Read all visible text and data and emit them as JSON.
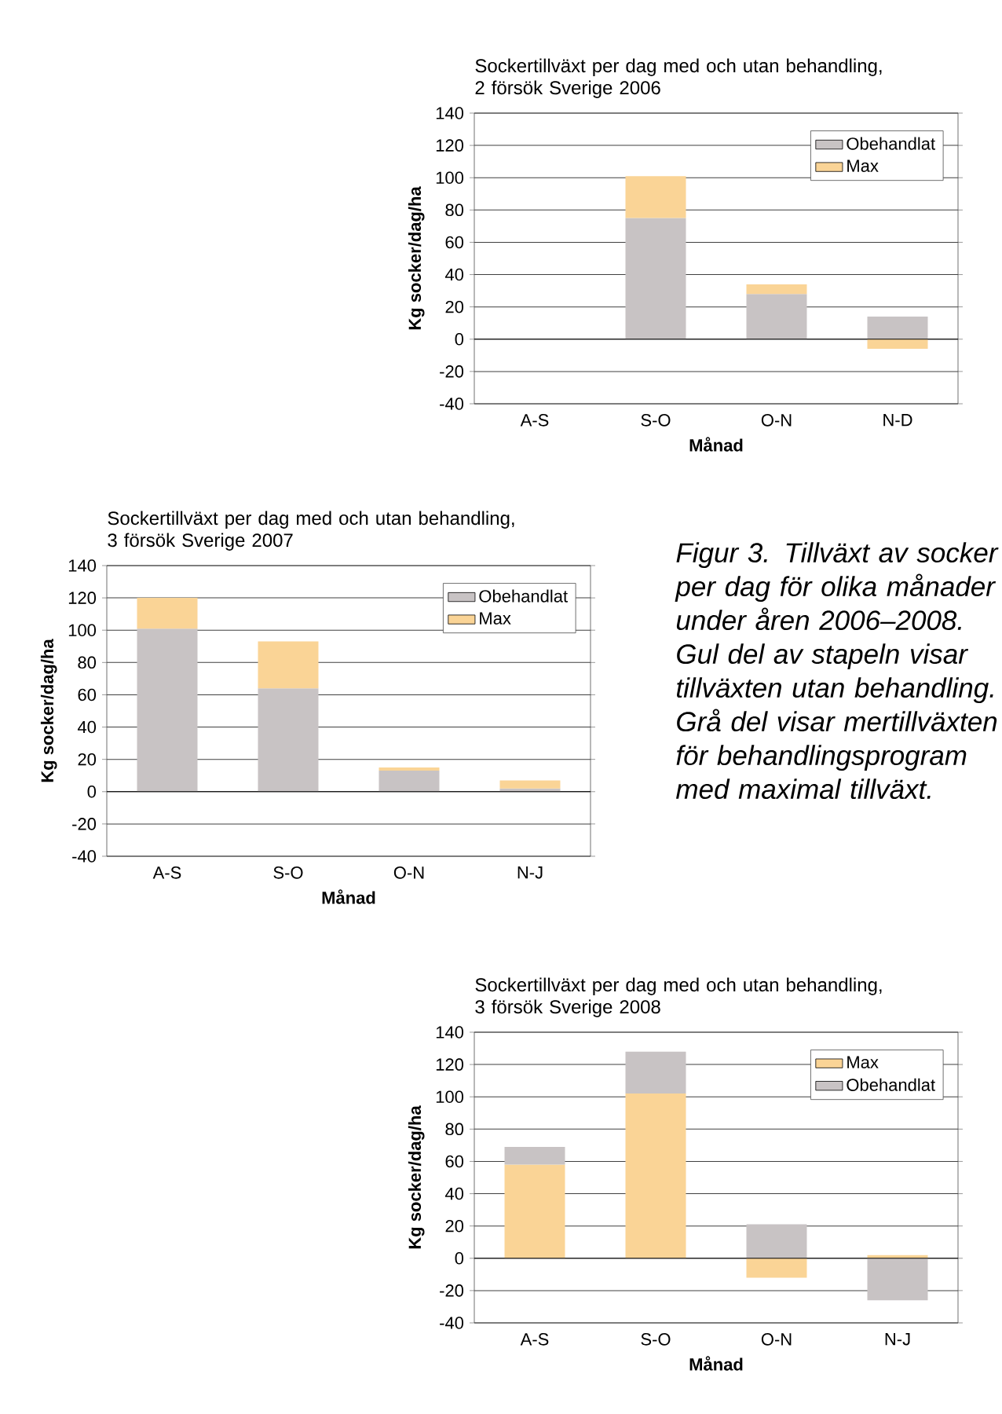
{
  "chart_data": [
    {
      "type": "bar",
      "stacked": true,
      "title": "Sockertillväxt per dag med och utan behandling, 2 försök Sverige 2006",
      "xlabel": "Månad",
      "ylabel": "Kg socker/dag/ha",
      "categories": [
        "A-S",
        "S-O",
        "O-N",
        "N-D"
      ],
      "series": [
        {
          "name": "Obehandlat",
          "color": "#c8c3c4",
          "values": [
            null,
            75,
            28,
            14
          ]
        },
        {
          "name": "Max",
          "color": "#fad496",
          "values": [
            null,
            26,
            6,
            -6
          ]
        }
      ],
      "ylim": [
        -40,
        140
      ],
      "yticks": [
        -40,
        -20,
        0,
        20,
        40,
        60,
        80,
        100,
        120,
        140
      ],
      "grid": "y",
      "legend": "top right"
    },
    {
      "type": "bar",
      "stacked": true,
      "title": "Sockertillväxt per dag med och utan behandling, 3 försök Sverige 2007",
      "xlabel": "Månad",
      "ylabel": "Kg socker/dag/ha",
      "categories": [
        "A-S",
        "S-O",
        "O-N",
        "N-J"
      ],
      "series": [
        {
          "name": "Obehandlat",
          "color": "#c8c3c4",
          "values": [
            101,
            64,
            13,
            2
          ]
        },
        {
          "name": "Max",
          "color": "#fad496",
          "values": [
            19,
            29,
            2,
            5
          ]
        }
      ],
      "ylim": [
        -40,
        140
      ],
      "yticks": [
        -40,
        -20,
        0,
        20,
        40,
        60,
        80,
        100,
        120,
        140
      ],
      "grid": "y",
      "legend": "top right"
    },
    {
      "type": "other",
      "annotations": [
        "Figur 3. Tillväxt av socker per dag för olika månader under åren 2006–2008. Gul del av stapeln visar tillväxten utan behandling. Grå del visar mertillväxten för behandlingsprogram med maximal tillväxt."
      ]
    },
    {
      "type": "bar",
      "stacked": true,
      "title": "Sockertillväxt per dag med och utan behandling, 3 försök Sverige 2008",
      "xlabel": "Månad",
      "ylabel": "Kg socker/dag/ha",
      "categories": [
        "A-S",
        "S-O",
        "O-N",
        "N-J"
      ],
      "series": [
        {
          "name": "Max",
          "color": "#fad496",
          "values": [
            58,
            102,
            -12,
            2
          ]
        },
        {
          "name": "Obehandlat",
          "color": "#c8c3c4",
          "values": [
            11,
            26,
            21,
            -26
          ]
        }
      ],
      "ylim": [
        -40,
        140
      ],
      "yticks": [
        -40,
        -20,
        0,
        20,
        40,
        60,
        80,
        100,
        120,
        140
      ],
      "grid": "y",
      "legend": "top right"
    }
  ]
}
